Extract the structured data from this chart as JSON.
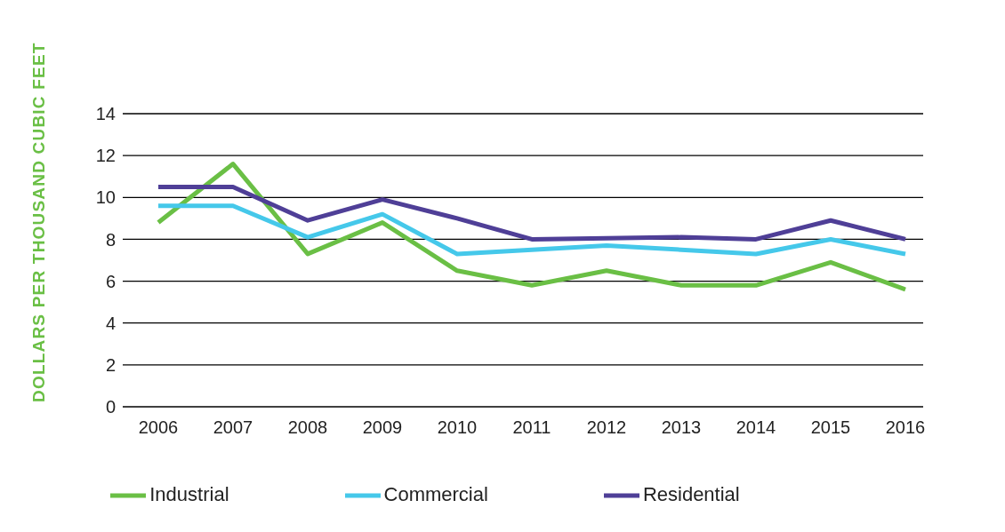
{
  "chart_data": {
    "type": "line",
    "ylabel": "DOLLARS PER THOUSAND CUBIC FEET",
    "categories": [
      "2006",
      "2007",
      "2008",
      "2009",
      "2010",
      "2011",
      "2012",
      "2013",
      "2014",
      "2015",
      "2016"
    ],
    "series": [
      {
        "name": "Industrial",
        "color": "#6abf45",
        "values": [
          8.8,
          11.6,
          7.3,
          8.8,
          6.5,
          5.8,
          6.5,
          5.8,
          5.8,
          6.9,
          5.6
        ]
      },
      {
        "name": "Commercial",
        "color": "#45c8ea",
        "values": [
          9.6,
          9.6,
          8.1,
          9.2,
          7.3,
          7.5,
          7.7,
          7.5,
          7.3,
          8.0,
          7.3
        ]
      },
      {
        "name": "Residential",
        "color": "#4f3f97",
        "values": [
          10.5,
          10.5,
          8.9,
          9.9,
          9.0,
          8.0,
          8.05,
          8.1,
          8.0,
          8.9,
          8.0
        ]
      }
    ],
    "ylim": [
      0,
      14
    ],
    "yticks": [
      0,
      2,
      4,
      6,
      8,
      10,
      12,
      14
    ],
    "grid": "y",
    "legend": "bottom",
    "marker": "none",
    "line_style": "solid"
  }
}
